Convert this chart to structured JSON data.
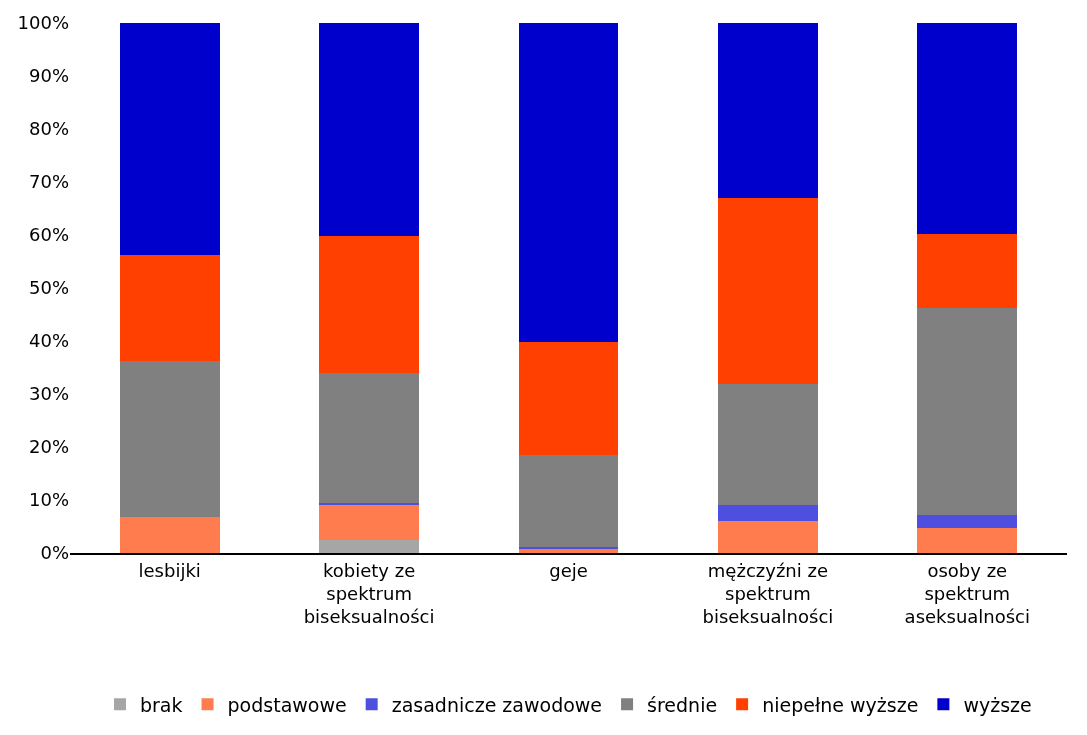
{
  "chart_data": {
    "type": "bar",
    "stacked": true,
    "categories": [
      "lesbijki",
      "kobiety ze spektrum biseksualności",
      "geje",
      "mężczyźni ze spektrum biseksualności",
      "osoby ze spektrum aseksualności"
    ],
    "series": [
      {
        "name": "brak",
        "color": "#a6a6a6",
        "values": [
          0,
          2.5,
          0,
          0,
          0
        ]
      },
      {
        "name": "podstawowe",
        "color": "#ff7c4f",
        "values": [
          6.7,
          6.6,
          0.7,
          6.1,
          4.7
        ]
      },
      {
        "name": "zasadnicze zawodowe",
        "color": "#4f4fdf",
        "values": [
          0,
          0.4,
          0.5,
          2.9,
          2.4
        ]
      },
      {
        "name": "średnie",
        "color": "#808080",
        "values": [
          29.6,
          24.4,
          17.2,
          22.8,
          39.1
        ]
      },
      {
        "name": "niepełne wyższe",
        "color": "#ff4000",
        "values": [
          19.9,
          25.9,
          21.5,
          35.2,
          13.9
        ]
      },
      {
        "name": "wyższe",
        "color": "#0000cc",
        "values": [
          43.8,
          40.2,
          60.1,
          33.0,
          39.9
        ]
      }
    ],
    "ylim": [
      0,
      100
    ],
    "yticks": [
      {
        "value": 0,
        "label": "0%"
      },
      {
        "value": 10,
        "label": "10%"
      },
      {
        "value": 20,
        "label": "20%"
      },
      {
        "value": 30,
        "label": "30%"
      },
      {
        "value": 40,
        "label": "40%"
      },
      {
        "value": 50,
        "label": "50%"
      },
      {
        "value": 60,
        "label": "60%"
      },
      {
        "value": 70,
        "label": "70%"
      },
      {
        "value": 80,
        "label": "80%"
      },
      {
        "value": 90,
        "label": "90%"
      },
      {
        "value": 100,
        "label": "100%"
      }
    ],
    "legend": "bottom"
  }
}
